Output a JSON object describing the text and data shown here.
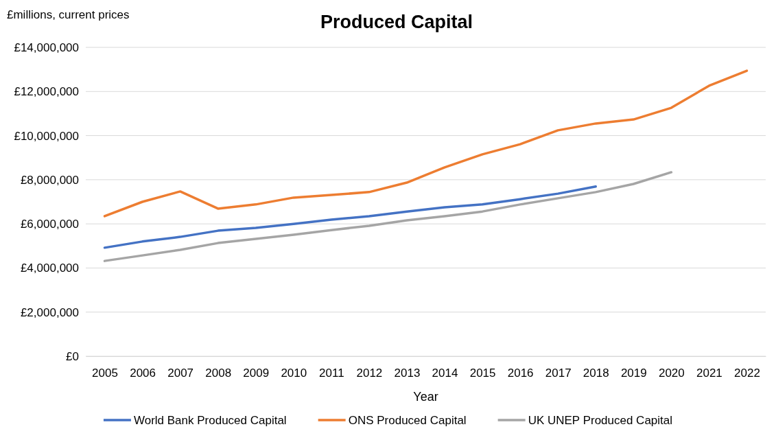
{
  "chart_data": {
    "type": "line",
    "title": "Produced Capital",
    "ylabel": "£millions, current prices",
    "xlabel": "Year",
    "categories": [
      "2005",
      "2006",
      "2007",
      "2008",
      "2009",
      "2010",
      "2011",
      "2012",
      "2013",
      "2014",
      "2015",
      "2016",
      "2017",
      "2018",
      "2019",
      "2020",
      "2021",
      "2022"
    ],
    "series": [
      {
        "name": "World Bank Produced Capital",
        "color": "#4472c4",
        "values": [
          4920000,
          5200000,
          5410000,
          5690000,
          5820000,
          6000000,
          6190000,
          6350000,
          6560000,
          6750000,
          6880000,
          7120000,
          7370000,
          7690000,
          null,
          null,
          null,
          null
        ]
      },
      {
        "name": "ONS Produced Capital",
        "color": "#ed7d31",
        "values": [
          6350000,
          7000000,
          7470000,
          6690000,
          6880000,
          7190000,
          7310000,
          7440000,
          7870000,
          8560000,
          9150000,
          9610000,
          10240000,
          10550000,
          10730000,
          11260000,
          12260000,
          12940000
        ]
      },
      {
        "name": "UK UNEP Produced Capital",
        "color": "#a5a5a5",
        "values": [
          4320000,
          4570000,
          4820000,
          5130000,
          5320000,
          5510000,
          5720000,
          5910000,
          6160000,
          6350000,
          6560000,
          6880000,
          7160000,
          7440000,
          7810000,
          8340000,
          null,
          null
        ]
      }
    ],
    "ylim": [
      0,
      14000000
    ],
    "yticks": [
      {
        "value": 0,
        "label": "£0"
      },
      {
        "value": 2000000,
        "label": "£2,000,000"
      },
      {
        "value": 4000000,
        "label": "£4,000,000"
      },
      {
        "value": 6000000,
        "label": "£6,000,000"
      },
      {
        "value": 8000000,
        "label": "£8,000,000"
      },
      {
        "value": 10000000,
        "label": "£10,000,000"
      },
      {
        "value": 12000000,
        "label": "£12,000,000"
      },
      {
        "value": 14000000,
        "label": "£14,000,000"
      }
    ],
    "grid": "y",
    "legend": "bottom",
    "marker": "none",
    "line_style": "solid"
  }
}
